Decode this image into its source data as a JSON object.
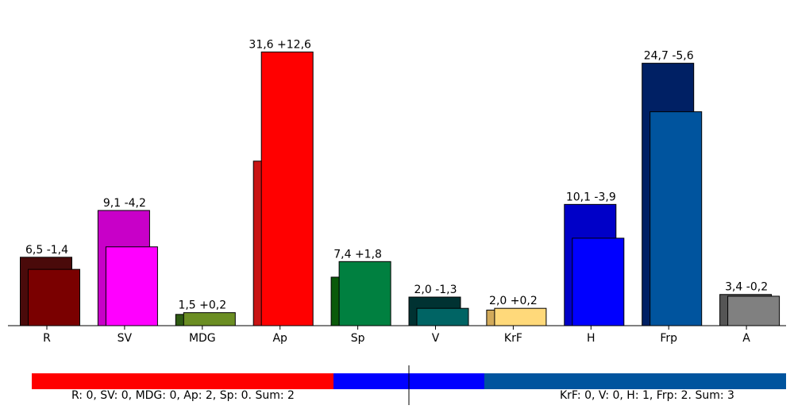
{
  "chart_data": {
    "type": "bar",
    "title": "",
    "xlabel": "",
    "ylabel": "",
    "ylim": [
      0,
      33.2
    ],
    "categories": [
      "R",
      "SV",
      "MDG",
      "Ap",
      "Sp",
      "V",
      "KrF",
      "H",
      "Frp",
      "A"
    ],
    "series": [
      {
        "values": [
          7.9,
          13.3,
          1.3,
          19.0,
          5.6,
          3.3,
          1.8,
          14.0,
          30.3,
          3.6
        ],
        "colors": [
          "#4a0a0a",
          "#c800c8",
          "#2e5a12",
          "#c81414",
          "#0a5a0a",
          "#003232",
          "#d2aa5a",
          "#0000c8",
          "#002064",
          "#555555"
        ]
      },
      {
        "values": [
          6.5,
          9.1,
          1.5,
          31.6,
          7.4,
          2.0,
          2.0,
          10.1,
          24.7,
          3.4
        ],
        "colors": [
          "#7a0000",
          "#ff00ff",
          "#6b8e23",
          "#ff0000",
          "#008040",
          "#006464",
          "#ffd97a",
          "#0000ff",
          "#00549e",
          "#808080"
        ]
      }
    ],
    "data_labels": [
      "6,5 -1,4",
      "9,1 -4,2",
      "1,5 +0,2",
      "31,6 +12,6",
      "7,4 +1,8",
      "2,0 -1,3",
      "2,0 +0,2",
      "10,1 -3,9",
      "24,7 -5,6",
      "3,4 -0,2"
    ],
    "legend": "none"
  },
  "seat_bar": {
    "segments": [
      {
        "color": "#ff0000",
        "value": 2
      },
      {
        "color": "#0000ff",
        "value": 1
      },
      {
        "color": "#00549e",
        "value": 2
      }
    ],
    "left_text": "R: 0, SV: 0, MDG: 0, Ap: 2, Sp: 0. Sum: 2",
    "right_text": "KrF: 0, V: 0, H: 1, Frp: 2. Sum: 3"
  }
}
